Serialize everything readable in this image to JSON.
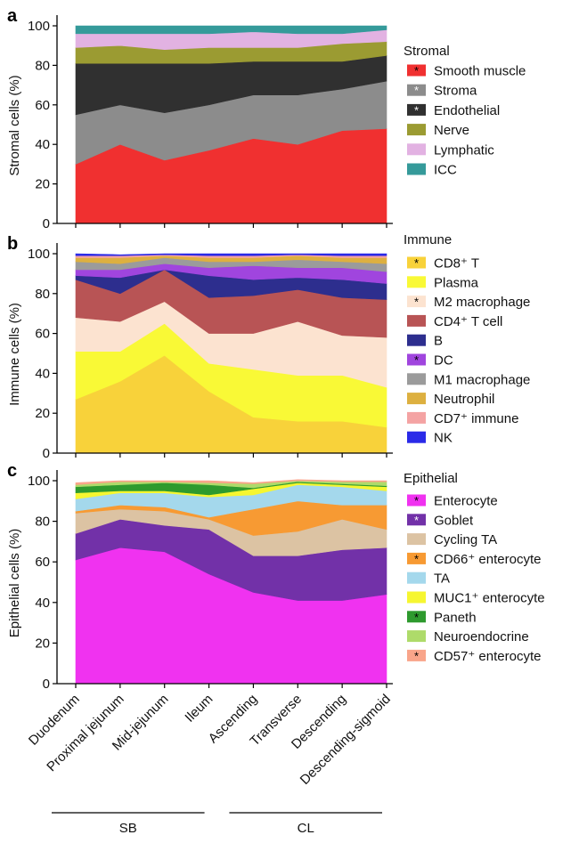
{
  "figure": {
    "regions": [
      {
        "label": "SB",
        "from": 0,
        "to": 3
      },
      {
        "label": "CL",
        "from": 4,
        "to": 7
      }
    ]
  },
  "chart_data": [
    {
      "panel": "a",
      "type": "area",
      "stacked": true,
      "ylabel": "Stromal cells (%)",
      "ylim": [
        0,
        100
      ],
      "yticks": [
        "0",
        "20",
        "40",
        "60",
        "80",
        "100"
      ],
      "categories": [
        "Duodenum",
        "Proximal jejunum",
        "Mid-jejunum",
        "Ileum",
        "Ascending",
        "Transverse",
        "Descending",
        "Descending-sigmoid"
      ],
      "legend_title": "Stromal",
      "series": [
        {
          "name": "Smooth muscle",
          "color": "#f03030",
          "marker": "black-star",
          "values": [
            30,
            40,
            32,
            37,
            43,
            40,
            47,
            48
          ]
        },
        {
          "name": "Stroma",
          "color": "#8c8c8c",
          "marker": "white-star",
          "values": [
            25,
            20,
            24,
            23,
            22,
            25,
            21,
            24
          ]
        },
        {
          "name": "Endothelial",
          "color": "#303030",
          "marker": "white-star",
          "values": [
            26,
            21,
            25,
            21,
            17,
            17,
            14,
            13
          ]
        },
        {
          "name": "Nerve",
          "color": "#9b9b32",
          "values": [
            8,
            9,
            7,
            8,
            7,
            7,
            9,
            7
          ]
        },
        {
          "name": "Lymphatic",
          "color": "#e2b2e2",
          "values": [
            7,
            6,
            8,
            7,
            8,
            7,
            5,
            6
          ]
        },
        {
          "name": "ICC",
          "color": "#359a9a",
          "values": [
            4,
            4,
            4,
            4,
            3,
            4,
            4,
            2
          ]
        }
      ]
    },
    {
      "panel": "b",
      "type": "area",
      "stacked": true,
      "ylabel": "Immune cells (%)",
      "ylim": [
        0,
        100
      ],
      "yticks": [
        "0",
        "20",
        "40",
        "60",
        "80",
        "100"
      ],
      "categories": [
        "Duodenum",
        "Proximal jejunum",
        "Mid-jejunum",
        "Ileum",
        "Ascending",
        "Transverse",
        "Descending",
        "Descending-sigmoid"
      ],
      "legend_title": "Immune",
      "series": [
        {
          "name": "CD8⁺ T",
          "color": "#f8d23a",
          "marker": "black-star",
          "values": [
            27,
            36,
            49,
            31,
            18,
            16,
            16,
            13
          ]
        },
        {
          "name": "Plasma",
          "color": "#f9f936",
          "values": [
            24,
            15,
            16,
            14,
            24,
            23,
            23,
            20
          ]
        },
        {
          "name": "M2 macrophage",
          "color": "#fce3d0",
          "marker": "black-star",
          "values": [
            17,
            15,
            11,
            15,
            18,
            27,
            20,
            25
          ]
        },
        {
          "name": "CD4⁺ T cell",
          "color": "#b85455",
          "values": [
            19,
            14,
            16,
            18,
            19,
            16,
            19,
            19
          ]
        },
        {
          "name": "B",
          "color": "#2d2e8e",
          "values": [
            2,
            8,
            0,
            11,
            8,
            6,
            9,
            8
          ]
        },
        {
          "name": "DC",
          "color": "#a045de",
          "marker": "black-star",
          "values": [
            3,
            4,
            3,
            4,
            7,
            5,
            6,
            6
          ]
        },
        {
          "name": "M1 macrophage",
          "color": "#9b9b9b",
          "values": [
            4,
            3,
            3,
            3,
            2,
            4,
            3,
            4
          ]
        },
        {
          "name": "Neutrophil",
          "color": "#ddb040",
          "values": [
            2,
            3,
            1,
            2,
            2,
            2,
            2,
            3
          ]
        },
        {
          "name": "CD7⁺ immune",
          "color": "#f4a3a3",
          "values": [
            1,
            1,
            0.5,
            1,
            1,
            0.5,
            1,
            1
          ]
        },
        {
          "name": "NK",
          "color": "#2a2ae8",
          "values": [
            1,
            0.5,
            0.5,
            1,
            1,
            0.5,
            1,
            1
          ]
        }
      ]
    },
    {
      "panel": "c",
      "type": "area",
      "stacked": true,
      "ylabel": "Epithelial cells (%)",
      "ylim": [
        0,
        100
      ],
      "yticks": [
        "0",
        "20",
        "40",
        "60",
        "80",
        "100"
      ],
      "categories": [
        "Duodenum",
        "Proximal jejunum",
        "Mid-jejunum",
        "Ileum",
        "Ascending",
        "Transverse",
        "Descending",
        "Descending-sigmoid"
      ],
      "legend_title": "Epithelial",
      "series": [
        {
          "name": "Enterocyte",
          "color": "#f032f0",
          "marker": "black-star",
          "values": [
            61,
            67,
            65,
            54,
            45,
            41,
            41,
            44
          ]
        },
        {
          "name": "Goblet",
          "color": "#7231a8",
          "marker": "white-star",
          "values": [
            13,
            14,
            13,
            22,
            18,
            22,
            25,
            23
          ]
        },
        {
          "name": "Cycling TA",
          "color": "#dcc3a3",
          "values": [
            10,
            5,
            7,
            5,
            10,
            12,
            15,
            9
          ]
        },
        {
          "name": "CD66⁺ enterocyte",
          "color": "#f79a33",
          "marker": "black-star",
          "values": [
            1,
            2,
            2,
            1,
            13,
            15,
            7,
            12
          ]
        },
        {
          "name": "TA",
          "color": "#a4d8ec",
          "values": [
            6,
            6,
            7,
            10,
            7,
            8,
            9,
            7
          ]
        },
        {
          "name": "MUC1⁺ enterocyte",
          "color": "#f6f630",
          "values": [
            3,
            1,
            1,
            1,
            3,
            1,
            1,
            2
          ]
        },
        {
          "name": "Paneth",
          "color": "#2e9a2e",
          "marker": "black-star",
          "values": [
            3,
            3,
            4,
            5,
            0.5,
            0.5,
            0.5,
            0.5
          ]
        },
        {
          "name": "Neuroendocrine",
          "color": "#aedb6a",
          "values": [
            1,
            1.5,
            0.5,
            1,
            2,
            0.5,
            1,
            2
          ]
        },
        {
          "name": "CD57⁺ enterocyte",
          "color": "#f9a58a",
          "marker": "black-star",
          "values": [
            1,
            0.5,
            0.5,
            1,
            0.5,
            0.5,
            0.5,
            0.5
          ]
        }
      ]
    }
  ]
}
